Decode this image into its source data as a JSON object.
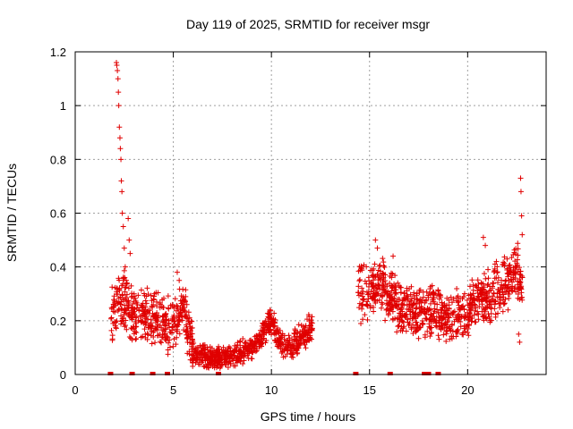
{
  "chart_data": {
    "type": "scatter",
    "title": "Day 119 of 2025, SRMTID for receiver msgr",
    "xlabel": "GPS time / hours",
    "ylabel": "SRMTID / TECUs",
    "xlim": [
      0,
      24
    ],
    "ylim": [
      0,
      1.2
    ],
    "x_ticks": [
      0,
      5,
      10,
      15,
      20
    ],
    "x_tick_labels": [
      "0",
      "5",
      "10",
      "15",
      "20"
    ],
    "y_ticks": [
      0,
      0.2,
      0.4,
      0.6,
      0.8,
      1,
      1.2
    ],
    "y_tick_labels": [
      "0",
      "0.2",
      "0.4",
      "0.6",
      "0.8",
      "1",
      "1.2"
    ],
    "grid": true,
    "marker": "+",
    "color": "#e00000",
    "segments": [
      {
        "range": [
          1.8,
          6.0
        ],
        "profile": [
          [
            1.8,
            0.2
          ],
          [
            2.2,
            0.3
          ],
          [
            3.0,
            0.22
          ],
          [
            4.0,
            0.22
          ],
          [
            5.0,
            0.18
          ],
          [
            5.5,
            0.25
          ],
          [
            6.0,
            0.1
          ]
        ],
        "spread": 0.12
      },
      {
        "range": [
          6.0,
          9.5
        ],
        "profile": [
          [
            6.0,
            0.08
          ],
          [
            7.0,
            0.06
          ],
          [
            8.0,
            0.07
          ],
          [
            9.0,
            0.1
          ],
          [
            9.5,
            0.13
          ]
        ],
        "spread": 0.05
      },
      {
        "range": [
          9.5,
          12.1
        ],
        "profile": [
          [
            9.5,
            0.15
          ],
          [
            10.0,
            0.2
          ],
          [
            10.5,
            0.12
          ],
          [
            11.0,
            0.1
          ],
          [
            11.5,
            0.14
          ],
          [
            12.1,
            0.18
          ]
        ],
        "spread": 0.06
      },
      {
        "range": [
          14.4,
          18.2
        ],
        "profile": [
          [
            14.4,
            0.3
          ],
          [
            15.0,
            0.3
          ],
          [
            15.5,
            0.33
          ],
          [
            16.0,
            0.3
          ],
          [
            16.5,
            0.26
          ],
          [
            17.0,
            0.25
          ],
          [
            17.5,
            0.22
          ],
          [
            18.2,
            0.22
          ]
        ],
        "spread": 0.12
      },
      {
        "range": [
          18.2,
          21.0
        ],
        "profile": [
          [
            18.2,
            0.25
          ],
          [
            19.0,
            0.2
          ],
          [
            19.5,
            0.23
          ],
          [
            20.0,
            0.22
          ],
          [
            20.5,
            0.3
          ],
          [
            21.0,
            0.28
          ]
        ],
        "spread": 0.1
      },
      {
        "range": [
          21.0,
          22.8
        ],
        "profile": [
          [
            21.0,
            0.28
          ],
          [
            21.5,
            0.32
          ],
          [
            22.0,
            0.34
          ],
          [
            22.5,
            0.4
          ],
          [
            22.8,
            0.3
          ]
        ],
        "spread": 0.12
      }
    ],
    "spike_points": [
      [
        2.1,
        1.16
      ],
      [
        2.12,
        1.15
      ],
      [
        2.15,
        1.13
      ],
      [
        2.18,
        1.1
      ],
      [
        2.2,
        1.05
      ],
      [
        2.22,
        1.0
      ],
      [
        2.25,
        0.92
      ],
      [
        2.28,
        0.88
      ],
      [
        2.3,
        0.84
      ],
      [
        2.33,
        0.8
      ],
      [
        2.35,
        0.72
      ],
      [
        2.38,
        0.68
      ],
      [
        2.4,
        0.6
      ],
      [
        2.45,
        0.55
      ],
      [
        2.5,
        0.47
      ],
      [
        2.55,
        0.4
      ],
      [
        2.6,
        0.35
      ],
      [
        2.7,
        0.58
      ],
      [
        2.75,
        0.5
      ],
      [
        2.8,
        0.45
      ],
      [
        3.0,
        0.3
      ],
      [
        5.2,
        0.38
      ],
      [
        5.3,
        0.35
      ],
      [
        15.3,
        0.5
      ],
      [
        15.4,
        0.47
      ],
      [
        16.2,
        0.44
      ],
      [
        20.8,
        0.51
      ],
      [
        20.9,
        0.48
      ],
      [
        22.7,
        0.73
      ],
      [
        22.72,
        0.68
      ],
      [
        22.75,
        0.59
      ],
      [
        22.78,
        0.52
      ],
      [
        22.6,
        0.15
      ],
      [
        22.65,
        0.12
      ]
    ],
    "baseline_marks_x": [
      1.8,
      2.9,
      3.95,
      4.7,
      7.3,
      14.3,
      16.05,
      17.8,
      18.0,
      18.5
    ]
  }
}
